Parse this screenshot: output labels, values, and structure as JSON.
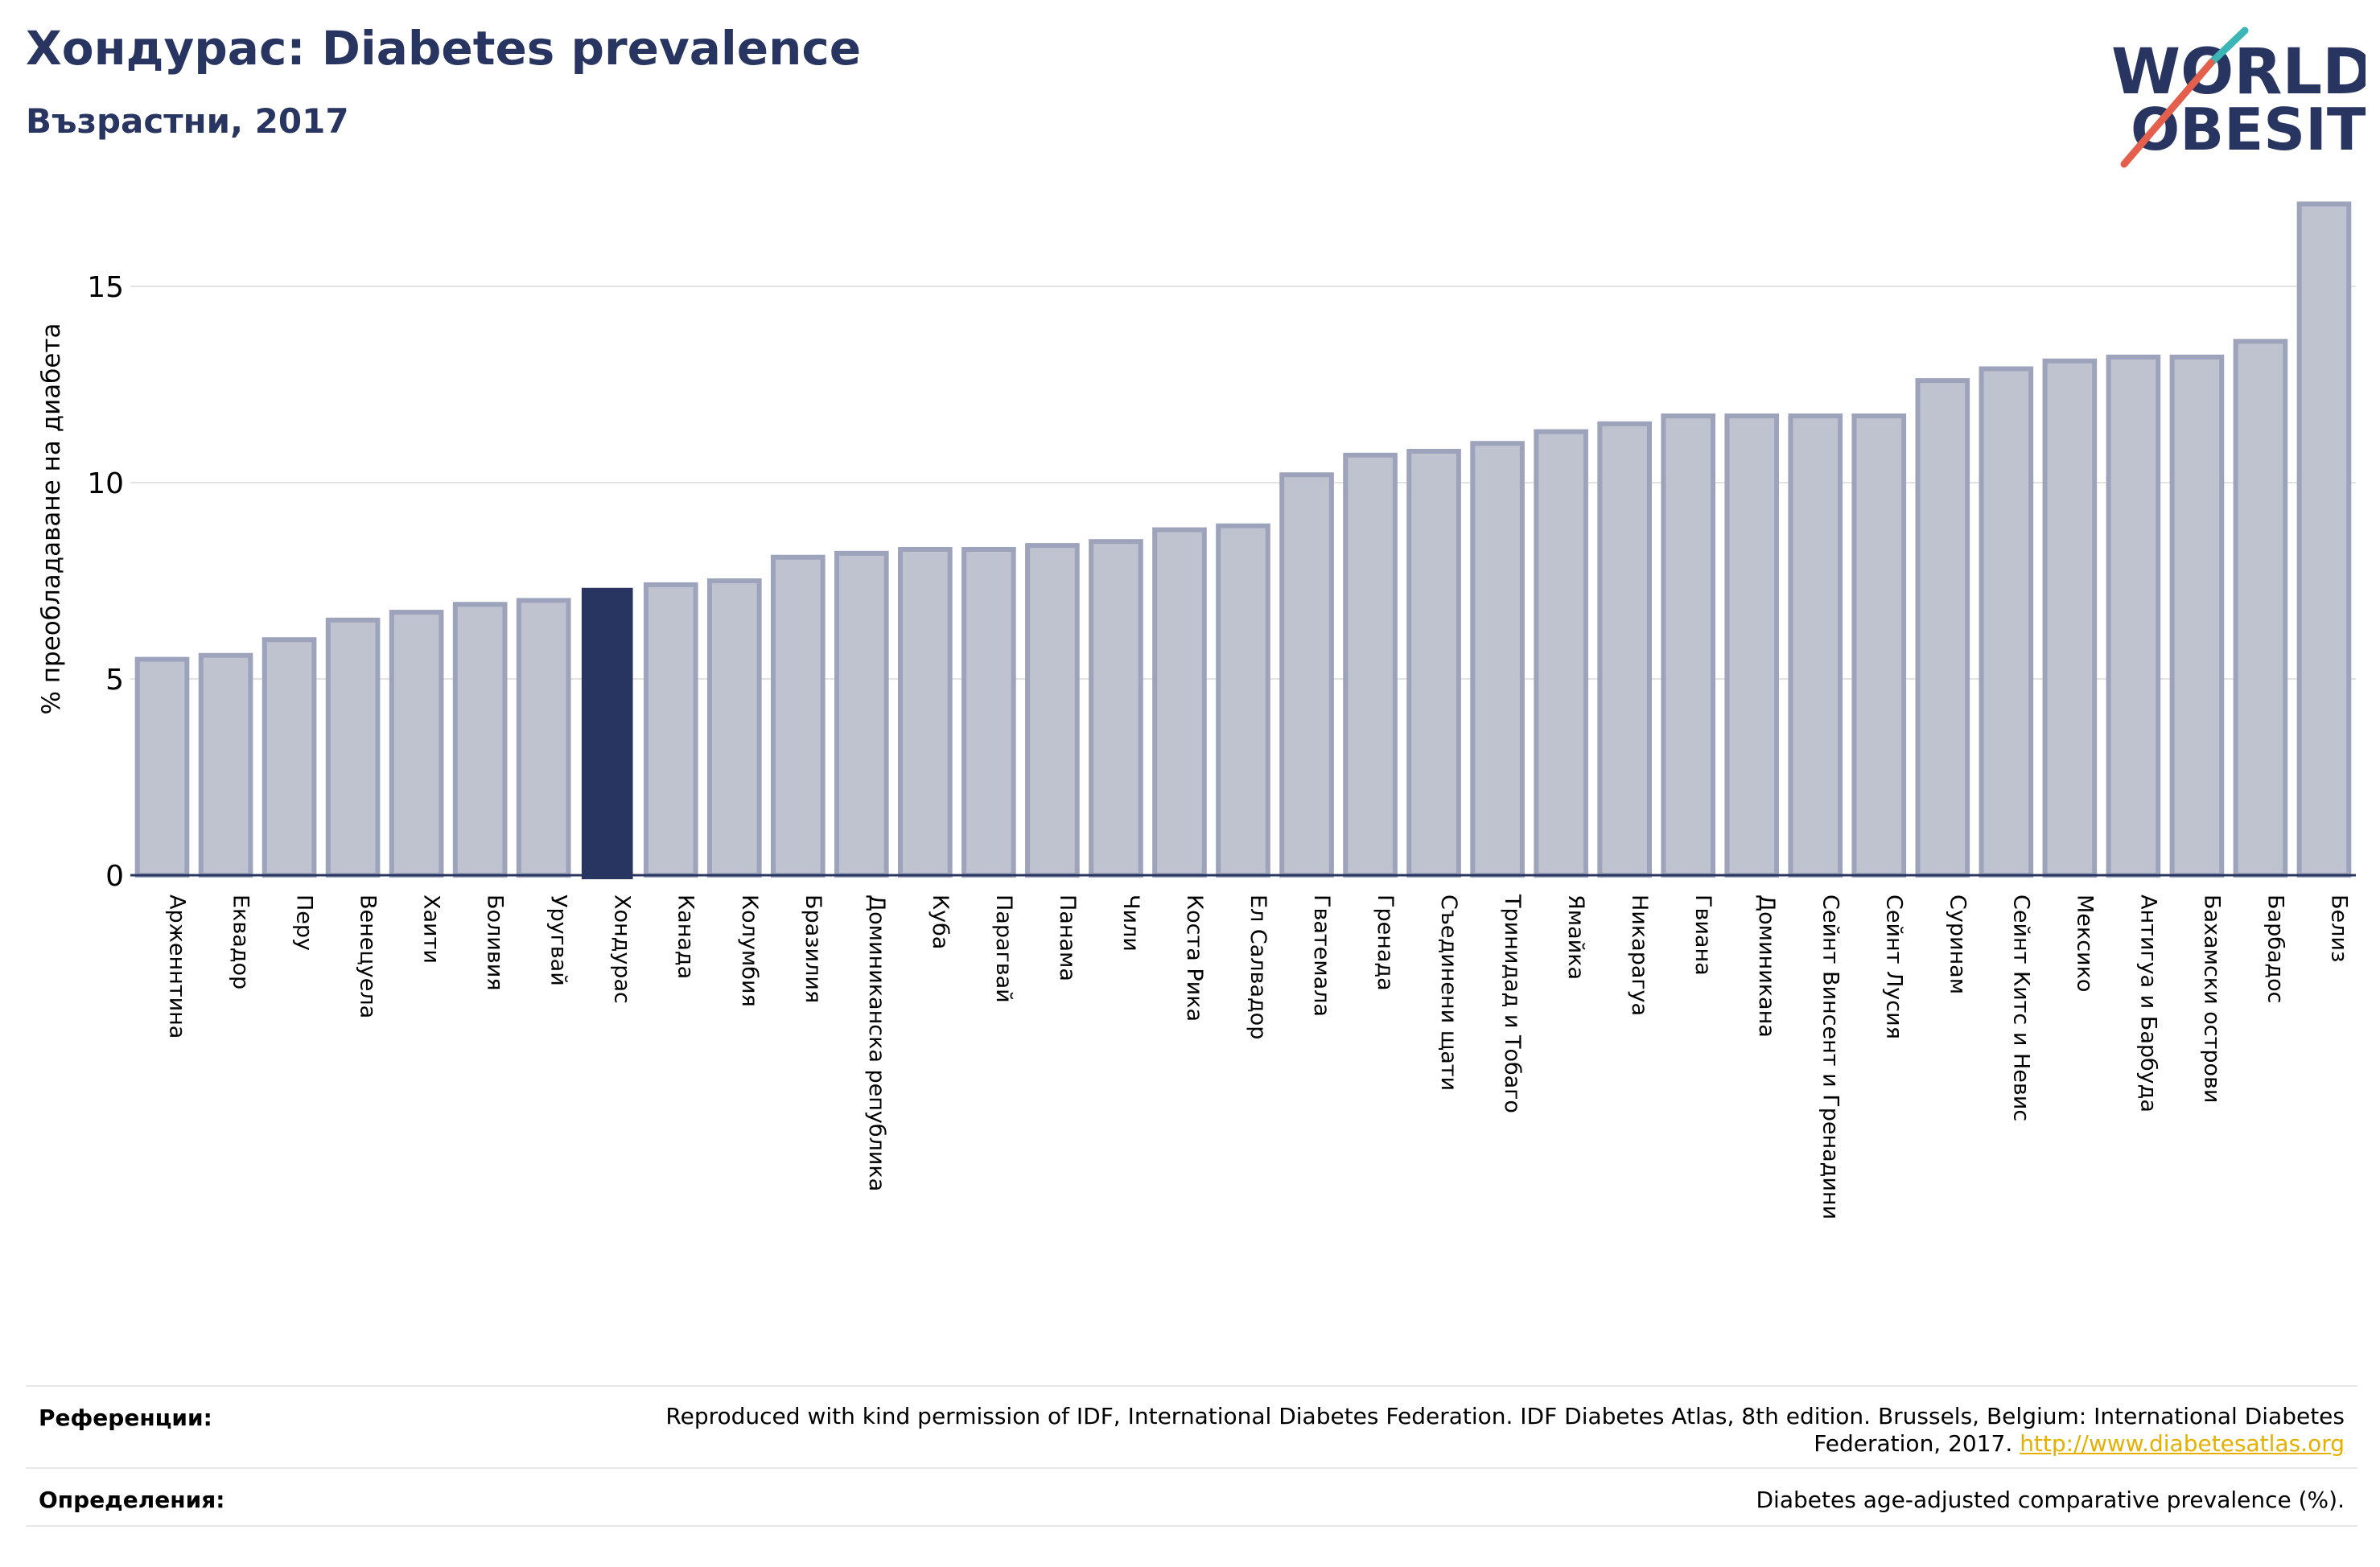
{
  "title": "Хондурас: Diabetes prevalence",
  "subtitle": "Възрастни, 2017",
  "logo": {
    "line1": "WORLD",
    "line2": "OBESITY",
    "text_color": "#283561",
    "slash_colors": [
      "#3bb5b5",
      "#e4604d"
    ]
  },
  "colors": {
    "bar": "#bfc2cf",
    "bar_edge": "#9ea3bc",
    "highlight": "#283561",
    "grid": "#e3e3e3",
    "axis": "#283561"
  },
  "chart_data": {
    "type": "bar",
    "ylabel": "% преобладаване на диабета",
    "ylim": [
      0,
      17.5
    ],
    "yticks": [
      0,
      5,
      10,
      15
    ],
    "grid": true,
    "highlight": "Хондурас",
    "categories": [
      "Арженнтина",
      "Еквадор",
      "Перу",
      "Венецуела",
      "Хаити",
      "Боливия",
      "Уругвай",
      "Хондурас",
      "Канада",
      "Колумбия",
      "Бразилия",
      "Доминиканска република",
      "Куба",
      "Парагвай",
      "Панама",
      "Чили",
      "Коста Рика",
      "Ел Салвадор",
      "Гватемала",
      "Гренада",
      "Съединени щати",
      "Тринидад и Тобаго",
      "Ямайка",
      "Никарагуа",
      "Гвиана",
      "Доминикана",
      "Сейнт Винсент и Гренадини",
      "Сейнт Лусия",
      "Суринам",
      "Сейнт Китс и Невис",
      "Мексико",
      "Антигуа и Барбуда",
      "Бахамски острови",
      "Барбадос",
      "Белиз"
    ],
    "values": [
      5.5,
      5.6,
      6.0,
      6.5,
      6.7,
      6.9,
      7.0,
      7.3,
      7.4,
      7.5,
      8.1,
      8.2,
      8.3,
      8.3,
      8.4,
      8.5,
      8.8,
      8.9,
      10.2,
      10.7,
      10.8,
      11.0,
      11.3,
      11.5,
      11.7,
      11.7,
      11.7,
      11.7,
      12.6,
      12.9,
      13.1,
      13.2,
      13.2,
      13.6,
      17.1
    ]
  },
  "footer": {
    "references_label": "Референции:",
    "references_text": "Reproduced with kind permission of IDF, International Diabetes Federation. IDF Diabetes Atlas, 8th edition. Brussels, Belgium: International Diabetes Federation, 2017.",
    "references_link": "http://www.diabetesatlas.org",
    "definitions_label": "Определения:",
    "definitions_text": "Diabetes age-adjusted comparative prevalence (%)."
  }
}
